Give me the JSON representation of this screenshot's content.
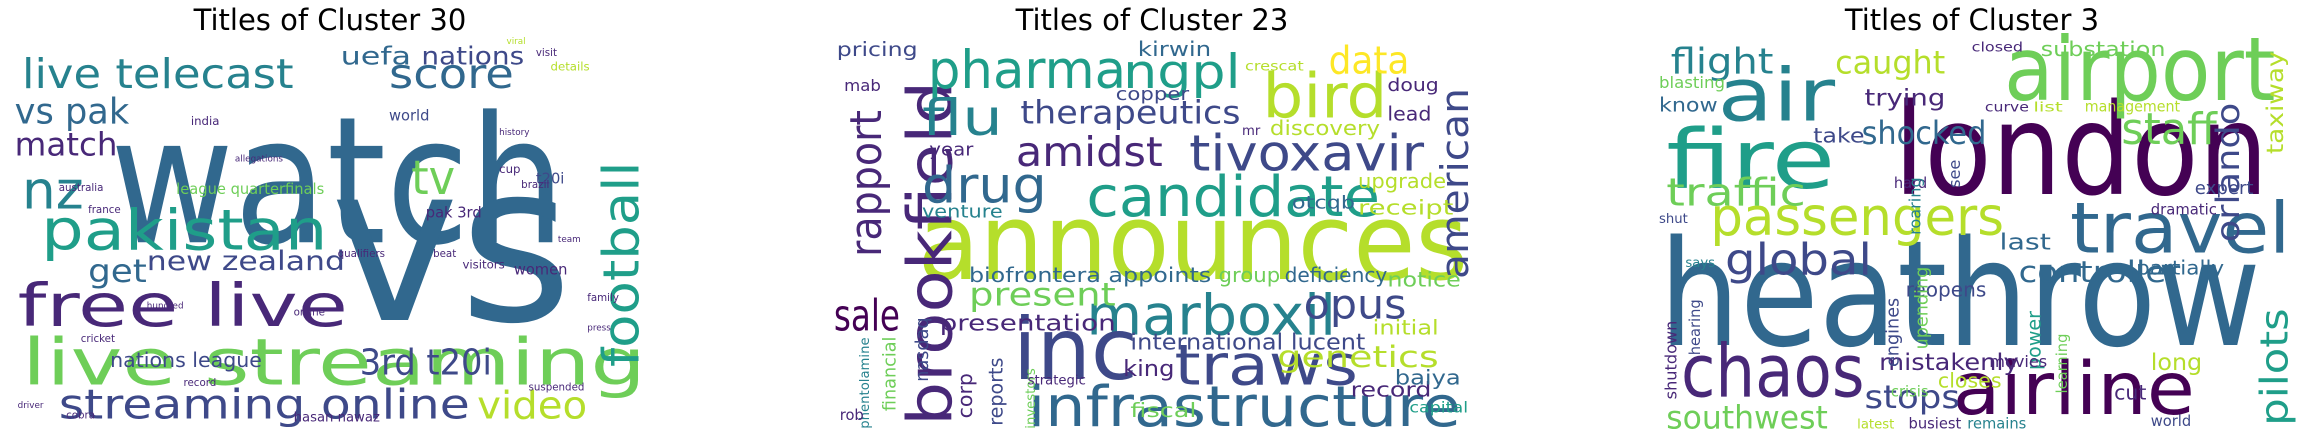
{
  "panels": [
    {
      "title": "Titles of Cluster 30",
      "words": [
        "watch",
        "vs",
        "live telecast",
        "score",
        "uefa",
        "nations",
        "vs pak",
        "match",
        "nz",
        "pakistan",
        "get",
        "new zealand",
        "free live",
        "live streaming",
        "streaming online",
        "video",
        "3rd t20i",
        "football",
        "tv",
        "nations league",
        "league quarterfinals",
        "pak 3rd",
        "world",
        "t20i",
        "details",
        "women",
        "hasan nawaz",
        "suspended",
        "record",
        "cricket",
        "visitors",
        "beat",
        "family",
        "india",
        "australia",
        "france",
        "qualifiers",
        "online",
        "cup",
        "brazil",
        "history",
        "allegations",
        "cobra",
        "driver",
        "hundred",
        "viral",
        "team",
        "press",
        "visit"
      ]
    },
    {
      "title": "Titles of Cluster 23",
      "words": [
        "announces",
        "brookfield",
        "rapport",
        "pharma",
        "ngpl",
        "flu",
        "therapeutics",
        "bird",
        "data",
        "drug",
        "amidst",
        "tivoxavir",
        "candidate",
        "marboxil",
        "sale",
        "inc",
        "traws",
        "infrastructure",
        "present",
        "opus",
        "genetics",
        "american",
        "presentation",
        "biofrontera appoints",
        "group",
        "deficiency",
        "international lucent",
        "king",
        "fiscal",
        "record",
        "baiya",
        "capital",
        "notice",
        "initial",
        "upgrade",
        "receipt",
        "discovery",
        "lead",
        "doug",
        "otcqb",
        "kirwin",
        "crescat",
        "copper",
        "pricing",
        "mab",
        "year",
        "venture",
        "mr",
        "nasdaq",
        "financial",
        "phentolamine",
        "rob",
        "corp",
        "reports",
        "investors",
        "strategic"
      ]
    },
    {
      "title": "Titles of Cluster 3",
      "words": [
        "heathrow",
        "london",
        "airport",
        "air",
        "fire",
        "flight",
        "caught",
        "passengers",
        "traffic",
        "travel",
        "global",
        "chaos",
        "airline",
        "shocked",
        "staff",
        "orlando",
        "taxiway",
        "controller",
        "pilots",
        "southwest",
        "mistakenly",
        "stops",
        "long",
        "last",
        "trying",
        "take",
        "know",
        "blasting",
        "substation",
        "closed",
        "management",
        "list",
        "curve",
        "expert",
        "dramatic",
        "partially",
        "reopens",
        "upending",
        "engines",
        "power",
        "learning",
        "movies",
        "crisis",
        "closes",
        "latest",
        "busiest",
        "remains",
        "world",
        "cut",
        "hard",
        "see",
        "roaring",
        "says",
        "shut",
        "shutdown",
        "hearing"
      ]
    }
  ]
}
